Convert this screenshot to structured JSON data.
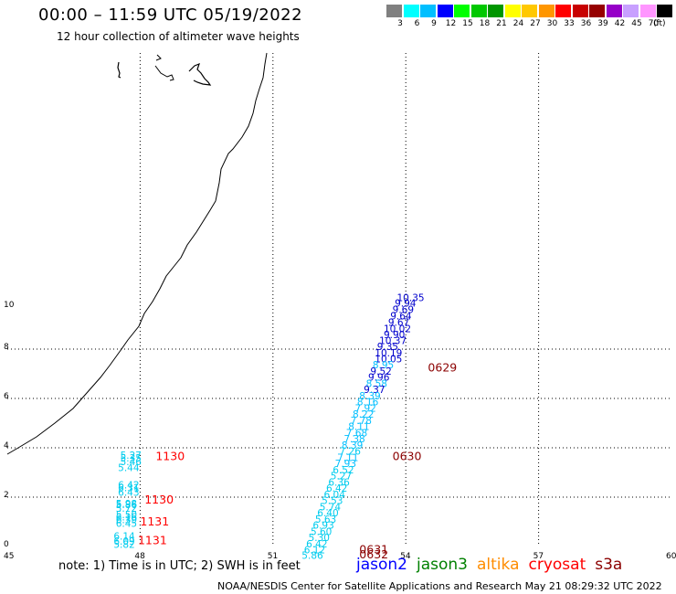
{
  "header": {
    "title": "00:00 – 11:59 UTC 05/19/2022",
    "subtitle": "12 hour collection of altimeter wave heights"
  },
  "legend": {
    "colors": [
      "#808080",
      "#00ffff",
      "#00bfff",
      "#0000ff",
      "#00ff00",
      "#00c800",
      "#009600",
      "#ffff00",
      "#ffc800",
      "#ff9600",
      "#ff0000",
      "#c80000",
      "#960000",
      "#9600c8",
      "#c8a0ff",
      "#ff96ff",
      "#000000"
    ],
    "values": [
      "3",
      "6",
      "9",
      "12",
      "15",
      "18",
      "21",
      "24",
      "27",
      "30",
      "33",
      "36",
      "39",
      "42",
      "45",
      "70"
    ],
    "unit": "(ft)"
  },
  "axes": {
    "x_ticks": [
      "45",
      "48",
      "51",
      "54",
      "57",
      "60"
    ],
    "y_ticks": [
      "0",
      "2",
      "4",
      "6",
      "8",
      "10"
    ]
  },
  "tracks": [
    {
      "points": [
        {
          "lon": 53.8,
          "lat": 9.95,
          "text": "10.35",
          "color": "#0000cd"
        },
        {
          "lon": 53.75,
          "lat": 9.72,
          "text": "9.94",
          "color": "#0000cd"
        },
        {
          "lon": 53.7,
          "lat": 9.47,
          "text": "9.69",
          "color": "#0000cd"
        },
        {
          "lon": 53.65,
          "lat": 9.2,
          "text": "9.64",
          "color": "#0000cd"
        },
        {
          "lon": 53.6,
          "lat": 8.95,
          "text": "9.67",
          "color": "#0000cd"
        },
        {
          "lon": 53.5,
          "lat": 8.68,
          "text": "10.02",
          "color": "#0000cd"
        },
        {
          "lon": 53.5,
          "lat": 8.45,
          "text": "9.90",
          "color": "#0000cd"
        },
        {
          "lon": 53.4,
          "lat": 8.2,
          "text": "10.37",
          "color": "#0000cd"
        },
        {
          "lon": 53.35,
          "lat": 7.97,
          "text": "9.35",
          "color": "#0000cd"
        },
        {
          "lon": 53.3,
          "lat": 7.7,
          "text": "10.19",
          "color": "#0000cd"
        },
        {
          "lon": 53.3,
          "lat": 7.47,
          "text": "10.05",
          "color": "#0000cd"
        },
        {
          "lon": 53.25,
          "lat": 7.22,
          "text": "8.95",
          "color": "#00bfff"
        },
        {
          "lon": 53.2,
          "lat": 6.97,
          "text": "9.52",
          "color": "#0000cd"
        },
        {
          "lon": 53.15,
          "lat": 6.72,
          "text": "9.96",
          "color": "#0000cd"
        },
        {
          "lon": 53.1,
          "lat": 6.47,
          "text": "8.58",
          "color": "#00bfff"
        },
        {
          "lon": 53.05,
          "lat": 6.22,
          "text": "9.37",
          "color": "#0000cd"
        },
        {
          "lon": 52.95,
          "lat": 5.97,
          "text": "8.39",
          "color": "#00bfff"
        },
        {
          "lon": 52.9,
          "lat": 5.72,
          "text": "8.16",
          "color": "#00bfff"
        },
        {
          "lon": 52.85,
          "lat": 5.47,
          "text": "7.92",
          "color": "#00bfff"
        },
        {
          "lon": 52.8,
          "lat": 5.22,
          "text": "8.22",
          "color": "#00bfff"
        },
        {
          "lon": 52.75,
          "lat": 4.97,
          "text": "7.78",
          "color": "#00bfff"
        },
        {
          "lon": 52.7,
          "lat": 4.72,
          "text": "8.11",
          "color": "#00bfff"
        },
        {
          "lon": 52.65,
          "lat": 4.47,
          "text": "7.68",
          "color": "#00bfff"
        },
        {
          "lon": 52.6,
          "lat": 4.22,
          "text": "7.38",
          "color": "#00bfff"
        },
        {
          "lon": 52.55,
          "lat": 3.97,
          "text": "8.39",
          "color": "#00bfff"
        },
        {
          "lon": 52.5,
          "lat": 3.72,
          "text": "7.26",
          "color": "#00ccee"
        },
        {
          "lon": 52.45,
          "lat": 3.47,
          "text": "7.11",
          "color": "#00bfff"
        },
        {
          "lon": 52.4,
          "lat": 3.22,
          "text": "7.93",
          "color": "#00bfff"
        },
        {
          "lon": 52.35,
          "lat": 2.97,
          "text": "6.52",
          "color": "#00ccee"
        },
        {
          "lon": 52.3,
          "lat": 2.72,
          "text": "5.27",
          "color": "#00ccee"
        },
        {
          "lon": 52.25,
          "lat": 2.47,
          "text": "6.36",
          "color": "#00ccee"
        },
        {
          "lon": 52.2,
          "lat": 2.22,
          "text": "6.42",
          "color": "#00ccee"
        },
        {
          "lon": 52.15,
          "lat": 1.97,
          "text": "6.04",
          "color": "#00ccee"
        },
        {
          "lon": 52.1,
          "lat": 1.72,
          "text": "5.53",
          "color": "#00ccee"
        },
        {
          "lon": 52.05,
          "lat": 1.47,
          "text": "5.74",
          "color": "#00ccee"
        },
        {
          "lon": 52.0,
          "lat": 1.22,
          "text": "6.40",
          "color": "#00ccee"
        },
        {
          "lon": 51.95,
          "lat": 0.97,
          "text": "5.63",
          "color": "#00ccee"
        },
        {
          "lon": 51.9,
          "lat": 0.72,
          "text": "6.93",
          "color": "#00ccee"
        },
        {
          "lon": 51.85,
          "lat": 0.47,
          "text": "5.60",
          "color": "#00ccee"
        },
        {
          "lon": 51.8,
          "lat": 0.22,
          "text": "5.30",
          "color": "#00ccee"
        },
        {
          "lon": 51.75,
          "lat": -0.03,
          "text": "6.42",
          "color": "#00ccee"
        },
        {
          "lon": 51.7,
          "lat": -0.28,
          "text": "6.12",
          "color": "#00ccee"
        },
        {
          "lon": 51.65,
          "lat": -0.5,
          "text": "5.86",
          "color": "#00ccee"
        }
      ]
    },
    {
      "points": [
        {
          "lon": 47.55,
          "lat": 3.55,
          "text": "5.27",
          "color": "#00ccee"
        },
        {
          "lon": 47.55,
          "lat": 3.45,
          "text": "5.35",
          "color": "#00ccee"
        },
        {
          "lon": 47.55,
          "lat": 3.3,
          "text": "5.46",
          "color": "#00ccee"
        },
        {
          "lon": 47.5,
          "lat": 3.05,
          "text": "5.44",
          "color": "#00ccee"
        },
        {
          "lon": 47.5,
          "lat": 2.35,
          "text": "6.42",
          "color": "#00ccee"
        },
        {
          "lon": 47.5,
          "lat": 2.25,
          "text": "6.31",
          "color": "#00ccee"
        },
        {
          "lon": 47.5,
          "lat": 2.05,
          "text": "6.43",
          "color": "#00ccee"
        },
        {
          "lon": 47.45,
          "lat": 1.6,
          "text": "5.98",
          "color": "#00ccee"
        },
        {
          "lon": 47.45,
          "lat": 1.55,
          "text": "5.86",
          "color": "#00ccee"
        },
        {
          "lon": 47.45,
          "lat": 1.4,
          "text": "5.72",
          "color": "#00ccee"
        },
        {
          "lon": 47.45,
          "lat": 1.15,
          "text": "5.50",
          "color": "#00ccee"
        },
        {
          "lon": 47.45,
          "lat": 1.05,
          "text": "6.16",
          "color": "#00ccee"
        },
        {
          "lon": 47.45,
          "lat": 0.95,
          "text": "6.39",
          "color": "#00ccee"
        },
        {
          "lon": 47.45,
          "lat": 0.8,
          "text": "6.45",
          "color": "#00ccee"
        },
        {
          "lon": 47.4,
          "lat": 0.28,
          "text": "6.14",
          "color": "#00ccee"
        },
        {
          "lon": 47.4,
          "lat": 0.08,
          "text": "6.09",
          "color": "#00ccee"
        },
        {
          "lon": 47.4,
          "lat": -0.05,
          "text": "5.82",
          "color": "#00ccee"
        }
      ]
    }
  ],
  "time_labels": [
    {
      "lon": 54.5,
      "lat": 7.1,
      "text": "0629",
      "color": "#8b0000"
    },
    {
      "lon": 53.7,
      "lat": 3.5,
      "text": "0630",
      "color": "#8b0000"
    },
    {
      "lon": 48.35,
      "lat": 3.5,
      "text": "1130",
      "color": "#ff0000"
    },
    {
      "lon": 48.1,
      "lat": 1.75,
      "text": "1130",
      "color": "#ff0000"
    },
    {
      "lon": 48.0,
      "lat": 0.85,
      "text": "1131",
      "color": "#ff0000"
    },
    {
      "lon": 47.95,
      "lat": 0.1,
      "text": "1131",
      "color": "#ff0000"
    },
    {
      "lon": 52.95,
      "lat": -0.28,
      "text": "0631",
      "color": "#8b0000"
    },
    {
      "lon": 52.95,
      "lat": -0.48,
      "text": "0632",
      "color": "#8b0000"
    }
  ],
  "note": "note: 1) Time is in UTC; 2) SWH is in feet",
  "satellites": [
    {
      "name": "jason2",
      "color": "#0000ff"
    },
    {
      "name": "jason3",
      "color": "#008000"
    },
    {
      "name": "altika",
      "color": "#ff8c00"
    },
    {
      "name": "cryosat",
      "color": "#ff0000"
    },
    {
      "name": "s3a",
      "color": "#8b0000"
    }
  ],
  "footer": "NOAA/NESDIS Center for Satellite Applications and Research    May 21 08:29:32 UTC 2022"
}
